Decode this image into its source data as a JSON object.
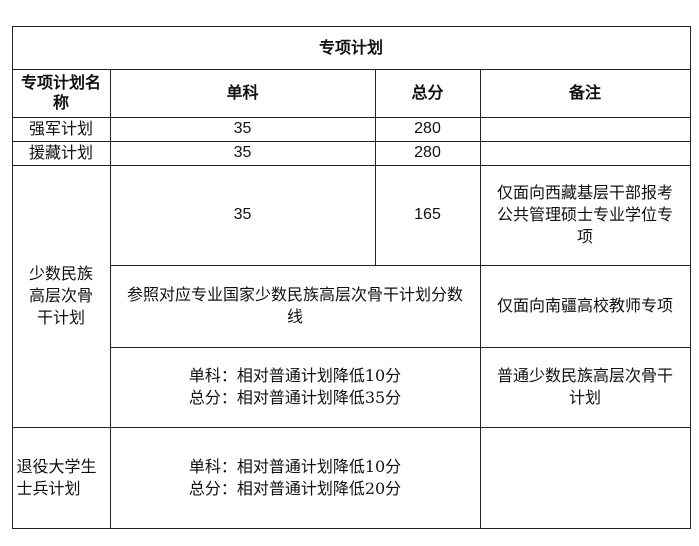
{
  "title": "专项计划",
  "headers": [
    "专项计划名称",
    "单科",
    "总分",
    "备注"
  ],
  "rows": {
    "qiangjun": {
      "name": "强军计划",
      "single": "35",
      "total": "280",
      "note": ""
    },
    "yuanzang": {
      "name": "援藏计划",
      "single": "35",
      "total": "280",
      "note": ""
    },
    "minority": {
      "name": "少数民族高层次骨干计划",
      "a": {
        "single": "35",
        "total": "165",
        "note": "仅面向西藏基层干部报考公共管理硕士专业学位专项"
      },
      "b": {
        "score": "参照对应专业国家少数民族高层次骨干计划分数线",
        "note": "仅面向南疆高校教师专项"
      },
      "c": {
        "line1": "单科：相对普通计划降低10分",
        "line2": "总分：相对普通计划降低35分",
        "note": "普通少数民族高层次骨干计划"
      }
    },
    "veteran": {
      "name": "退役大学生士兵计划",
      "line1": "单科：相对普通计划降低10分",
      "line2": "总分：相对普通计划降低20分",
      "note": ""
    }
  }
}
